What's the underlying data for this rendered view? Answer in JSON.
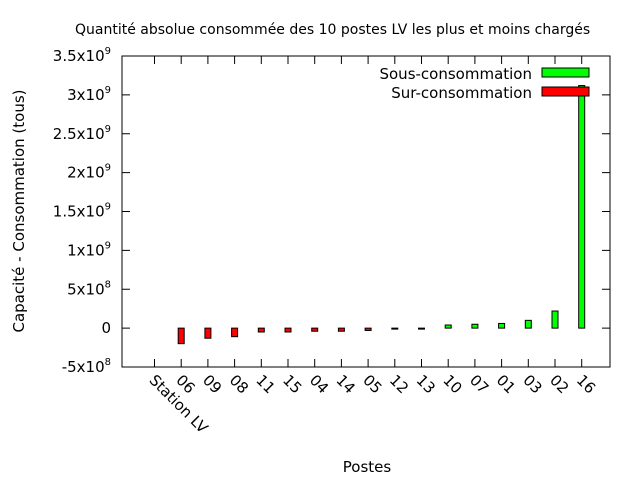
{
  "chart_data": {
    "type": "bar",
    "title": "Quantité absolue consommée des 10 postes LV les plus et moins chargés",
    "xlabel": "Postes",
    "ylabel": "Capacité - Consommation (tous)",
    "ylim": [
      -500000000,
      3500000000
    ],
    "yticks": [
      {
        "base": "-5x10",
        "exp": "8",
        "value": -500000000
      },
      {
        "base": "0",
        "exp": "",
        "value": 0
      },
      {
        "base": "5x10",
        "exp": "8",
        "value": 500000000
      },
      {
        "base": "1x10",
        "exp": "9",
        "value": 1000000000
      },
      {
        "base": "1.5x10",
        "exp": "9",
        "value": 1500000000
      },
      {
        "base": "2x10",
        "exp": "9",
        "value": 2000000000
      },
      {
        "base": "2.5x10",
        "exp": "9",
        "value": 2500000000
      },
      {
        "base": "3x10",
        "exp": "9",
        "value": 3000000000
      },
      {
        "base": "3.5x10",
        "exp": "9",
        "value": 3500000000
      }
    ],
    "categories": [
      "Station LV",
      "06",
      "09",
      "08",
      "11",
      "15",
      "04",
      "14",
      "05",
      "12",
      "13",
      "10",
      "07",
      "01",
      "03",
      "02",
      "16"
    ],
    "series": [
      {
        "name": "Sous-consommation",
        "color": "#00ff00",
        "values": [
          null,
          null,
          null,
          null,
          null,
          null,
          null,
          null,
          null,
          null,
          null,
          40000000,
          50000000,
          60000000,
          100000000,
          220000000,
          3120000000
        ]
      },
      {
        "name": "Sur-consommation",
        "color": "#ff0000",
        "values": [
          null,
          -200000000,
          -130000000,
          -110000000,
          -50000000,
          -50000000,
          -40000000,
          -40000000,
          -30000000,
          -10000000,
          -10000000,
          null,
          null,
          null,
          null,
          null,
          null
        ]
      }
    ],
    "grid": false,
    "legend_position": "top-right"
  }
}
